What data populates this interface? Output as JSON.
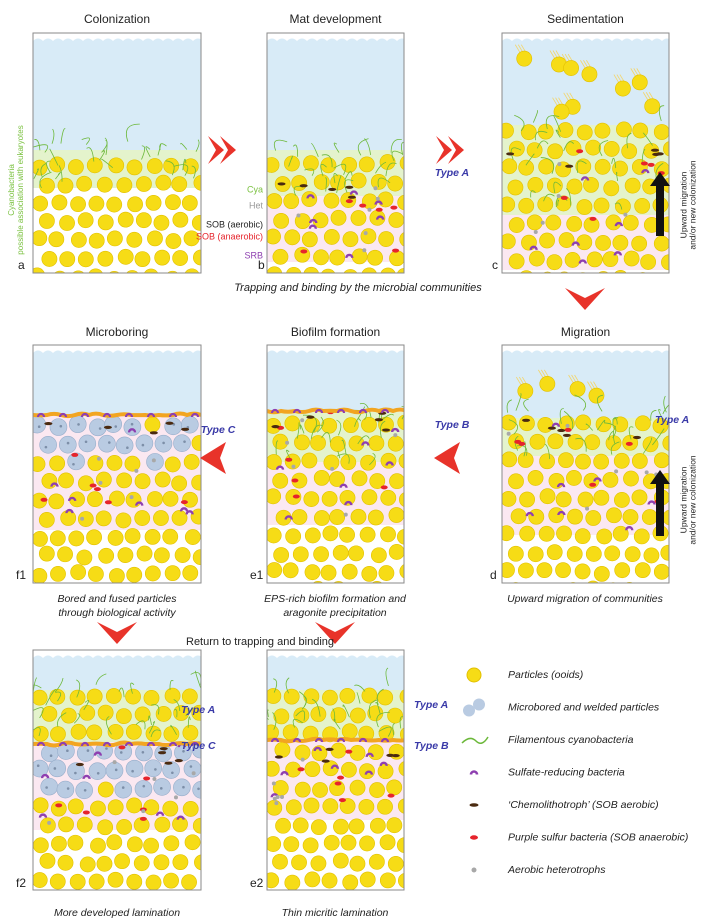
{
  "panels": [
    {
      "title": "Colonization",
      "letter": "a",
      "side_label": [
        "Cyanobacteria",
        "possible association with eukaryotes"
      ]
    },
    {
      "title": "Mat development",
      "letter": "b",
      "labels": [
        "Cya",
        "Het",
        "SOB (aerobic)",
        "SOB (anaerobic)",
        "SRB"
      ]
    },
    {
      "title": "Sedimentation",
      "letter": "c",
      "side_label": [
        "Upward migration",
        "and/or new colonization"
      ]
    },
    {
      "title": "Migration",
      "letter": "d",
      "type_labels": [
        "Type A"
      ],
      "side_label": [
        "Upward migration",
        "and/or new colonization"
      ],
      "caption": [
        "Upward migration of communities"
      ]
    },
    {
      "title": "Biofilm formation",
      "letter": "e1",
      "caption": [
        "EPS-rich biofilm formation and",
        "aragonite precipitation"
      ]
    },
    {
      "title": "Microboring",
      "letter": "f1",
      "caption": [
        "Bored and fused particles",
        "through biological activity"
      ]
    },
    {
      "letter": "f2",
      "type_labels": [
        "Type A",
        "Type C"
      ],
      "caption": [
        "More developed lamination"
      ]
    },
    {
      "letter": "e2",
      "type_labels": [
        "Type A",
        "Type B"
      ],
      "caption": [
        "Thin micritic lamination"
      ]
    }
  ],
  "transitions": [
    "Type A",
    "Type B",
    "Type C"
  ],
  "notes": [
    "Trapping and binding by the microbial communities",
    "Return to trapping and binding"
  ],
  "legend": [
    "Particles (ooids)",
    "Microbored and welded particles",
    "Filamentous cyanobacteria",
    "Sulfate-reducing bacteria",
    "‘Chemolithotroph’ (SOB aerobic)",
    "Purple sulfur bacteria (SOB anaerobic)",
    "Aerobic heterotrophs"
  ]
}
